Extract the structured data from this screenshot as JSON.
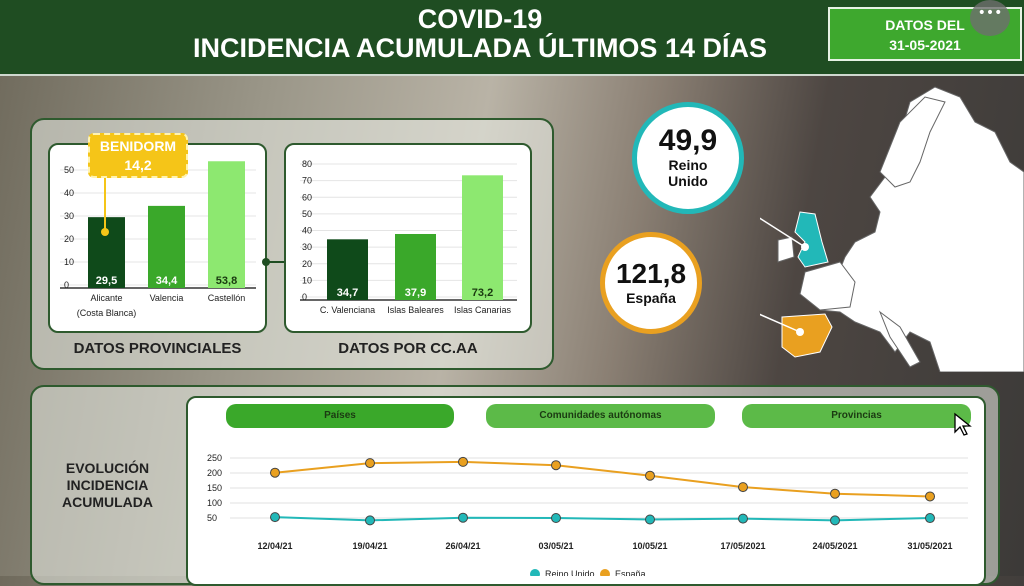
{
  "header": {
    "line1": "COVID-19",
    "line2": "INCIDENCIA ACUMULADA ÚLTIMOS 14 DÍAS",
    "date_label": "DATOS DEL",
    "date": "31-05-2021",
    "more_icon": "ellipsis-icon"
  },
  "colors": {
    "dark_green": "#0f4a1a",
    "mid_green": "#3aa82a",
    "light_green": "#8de870",
    "uk": "#22b8b8",
    "spain": "#e9a020",
    "callout": "#f5c518"
  },
  "provincial": {
    "title": "DATOS PROVINCIALES",
    "callout_label": "BENIDORM",
    "callout_value": "14,2"
  },
  "ccaa": {
    "title": "DATOS POR CC.AA"
  },
  "bubbles": {
    "uk_value": "49,9",
    "uk_label1": "Reino",
    "uk_label2": "Unido",
    "es_value": "121,8",
    "es_label": "España"
  },
  "evolution": {
    "label": "EVOLUCIÓN INCIDENCIA ACUMULADA",
    "tabs": [
      "Países",
      "Comunidades autónomas",
      "Provincias"
    ]
  },
  "chart_data": [
    {
      "type": "bar",
      "categories": [
        "Alicante\n(Costa Blanca)",
        "Valencia",
        "Castellón"
      ],
      "values": [
        29.5,
        34.4,
        53.8
      ],
      "labels": [
        "29,5",
        "34,4",
        "53,8"
      ],
      "yticks": [
        0,
        10,
        20,
        30,
        40,
        50
      ],
      "ylim": [
        0,
        50
      ],
      "title": "DATOS PROVINCIALES"
    },
    {
      "type": "bar",
      "categories": [
        "C. Valenciana",
        "Islas Baleares",
        "Islas Canarias"
      ],
      "values": [
        34.7,
        37.9,
        73.2
      ],
      "labels": [
        "34,7",
        "37,9",
        "73,2"
      ],
      "yticks": [
        0,
        10,
        20,
        30,
        40,
        50,
        60,
        70,
        80
      ],
      "ylim": [
        0,
        80
      ],
      "title": "DATOS POR CC.AA"
    },
    {
      "type": "line",
      "x": [
        "12/04/21",
        "19/04/21",
        "26/04/21",
        "03/05/21",
        "10/05/21",
        "17/05/2021",
        "24/05/2021",
        "31/05/2021"
      ],
      "yticks": [
        50,
        100,
        150,
        200,
        250
      ],
      "grid": true,
      "legend": "bottom",
      "series": [
        {
          "name": "Reino Unido",
          "values": [
            53,
            42,
            51,
            50,
            45,
            48,
            42,
            49.9
          ]
        },
        {
          "name": "España",
          "values": [
            201,
            233,
            237,
            226,
            191,
            153,
            131,
            121.8
          ]
        }
      ]
    }
  ]
}
